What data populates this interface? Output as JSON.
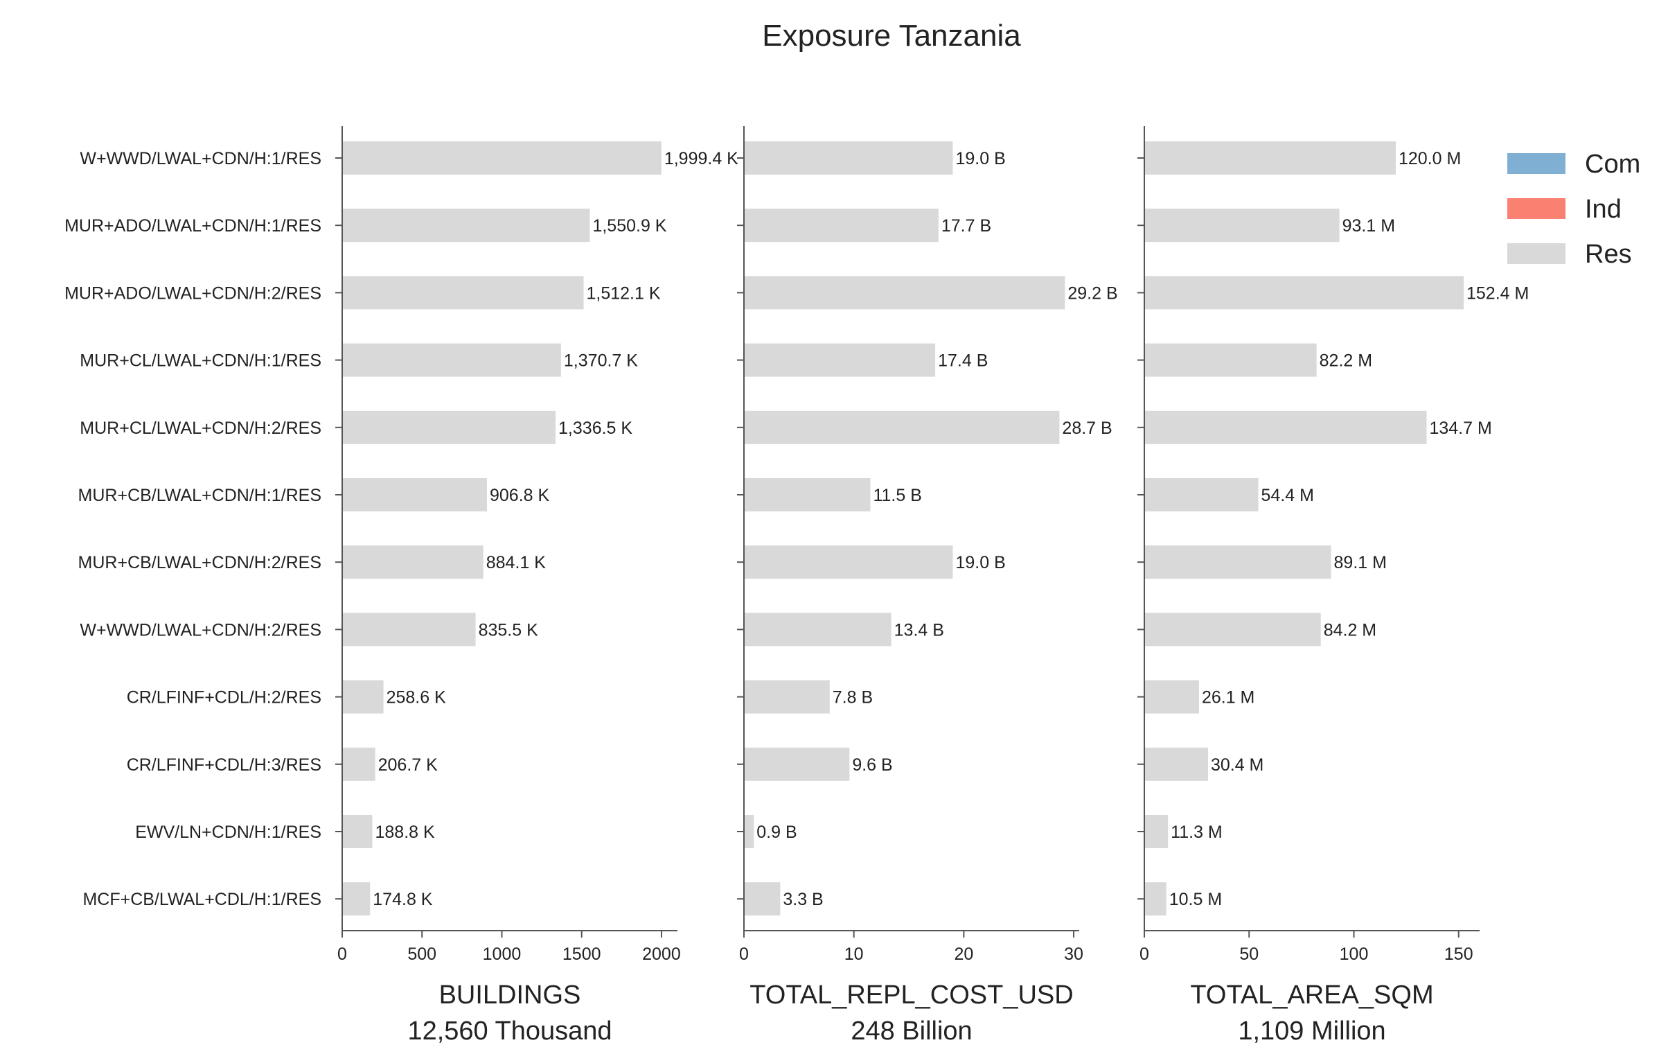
{
  "chart_data": {
    "type": "bar",
    "orientation": "horizontal",
    "stacked": true,
    "title": "Exposure Tanzania",
    "categories": [
      "W+WWD/LWAL+CDN/H:1/RES",
      "MUR+ADO/LWAL+CDN/H:1/RES",
      "MUR+ADO/LWAL+CDN/H:2/RES",
      "MUR+CL/LWAL+CDN/H:1/RES",
      "MUR+CL/LWAL+CDN/H:2/RES",
      "MUR+CB/LWAL+CDN/H:1/RES",
      "MUR+CB/LWAL+CDN/H:2/RES",
      "W+WWD/LWAL+CDN/H:2/RES",
      "CR/LFINF+CDL/H:2/RES",
      "CR/LFINF+CDL/H:3/RES",
      "EWV/LN+CDN/H:1/RES",
      "MCF+CB/LWAL+CDL/H:1/RES"
    ],
    "legend": {
      "placement": "top-right",
      "entries": [
        {
          "name": "Com",
          "color": "#7fb0d3"
        },
        {
          "name": "Ind",
          "color": "#fa8072"
        },
        {
          "name": "Res",
          "color": "#d9d9d9"
        }
      ]
    },
    "panels": [
      {
        "xlabel": "BUILDINGS",
        "total": "12,560 Thousand",
        "xlim": [
          0,
          2100
        ],
        "ticks": [
          0,
          500,
          1000,
          1500,
          2000
        ],
        "tick_labels": [
          "0",
          "500",
          "1000",
          "1500",
          "2000"
        ],
        "series": [
          {
            "name": "Res",
            "values": [
              1999.4,
              1550.9,
              1512.1,
              1370.7,
              1336.5,
              906.8,
              884.1,
              835.5,
              258.6,
              206.7,
              188.8,
              174.8
            ]
          }
        ],
        "value_labels": [
          "1,999.4 K",
          "1,550.9 K",
          "1,512.1 K",
          "1,370.7 K",
          "1,336.5 K",
          "906.8 K",
          "884.1 K",
          "835.5 K",
          "258.6 K",
          "206.7 K",
          "188.8 K",
          "174.8 K"
        ]
      },
      {
        "xlabel": "TOTAL_REPL_COST_USD",
        "total": "248 Billion",
        "xlim": [
          0,
          30.5
        ],
        "ticks": [
          0,
          10,
          20,
          30
        ],
        "tick_labels": [
          "0",
          "10",
          "20",
          "30"
        ],
        "series": [
          {
            "name": "Res",
            "values": [
              19.0,
              17.7,
              29.2,
              17.4,
              28.7,
              11.5,
              19.0,
              13.4,
              7.8,
              9.6,
              0.9,
              3.3
            ]
          }
        ],
        "value_labels": [
          "19.0 B",
          "17.7 B",
          "29.2 B",
          "17.4 B",
          "28.7 B",
          "11.5 B",
          "19.0 B",
          "13.4 B",
          "7.8 B",
          "9.6 B",
          "0.9 B",
          "3.3 B"
        ]
      },
      {
        "xlabel": "TOTAL_AREA_SQM",
        "total": "1,109 Million",
        "xlim": [
          0,
          160
        ],
        "ticks": [
          0,
          50,
          100,
          150
        ],
        "tick_labels": [
          "0",
          "50",
          "100",
          "150"
        ],
        "series": [
          {
            "name": "Res",
            "values": [
              120.0,
              93.1,
              152.4,
              82.2,
              134.7,
              54.4,
              89.1,
              84.2,
              26.1,
              30.4,
              11.3,
              10.5
            ]
          }
        ],
        "value_labels": [
          "120.0 M",
          "93.1 M",
          "152.4 M",
          "82.2 M",
          "134.7 M",
          "54.4 M",
          "89.1 M",
          "84.2 M",
          "26.1 M",
          "30.4 M",
          "11.3 M",
          "10.5 M"
        ]
      }
    ]
  }
}
